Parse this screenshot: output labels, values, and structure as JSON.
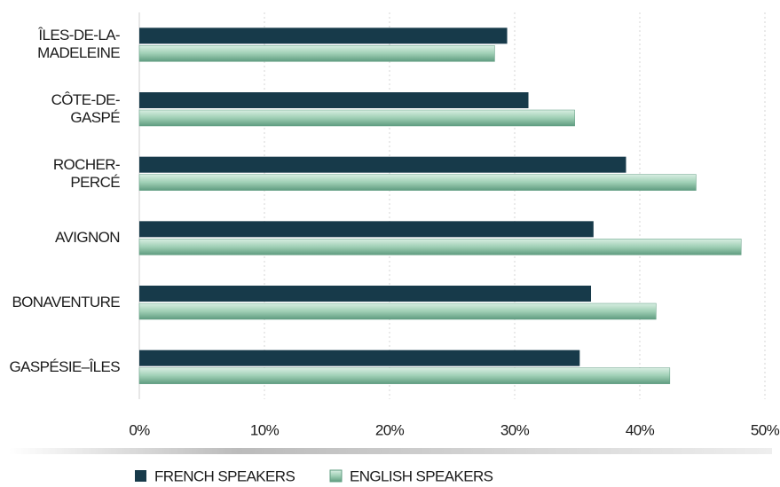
{
  "chart_data": {
    "type": "hbar",
    "categories": [
      "ÎLES-DE-LA-MADELEINE",
      "CÔTE-DE-GASPÉ",
      "ROCHER-PERCÉ",
      "AVIGNON",
      "BONAVENTURE",
      "GASPÉSIE–ÎLES"
    ],
    "series": [
      {
        "name": "FRENCH SPEAKERS",
        "color": "#173a4a",
        "values": [
          29.4,
          31.1,
          38.9,
          36.3,
          36.1,
          35.2
        ]
      },
      {
        "name": "ENGLISH SPEAKERS",
        "color": "#8cc2a6",
        "values": [
          28.4,
          34.8,
          44.5,
          48.1,
          41.3,
          42.4
        ]
      }
    ],
    "xlim": [
      0,
      50
    ],
    "xticks": [
      {
        "value": 0,
        "label": "0%"
      },
      {
        "value": 10,
        "label": "10%"
      },
      {
        "value": 20,
        "label": "20%"
      },
      {
        "value": 30,
        "label": "30%"
      },
      {
        "value": 40,
        "label": "40%"
      },
      {
        "value": 50,
        "label": "50%"
      }
    ],
    "grid": true,
    "legend": "bottom"
  }
}
